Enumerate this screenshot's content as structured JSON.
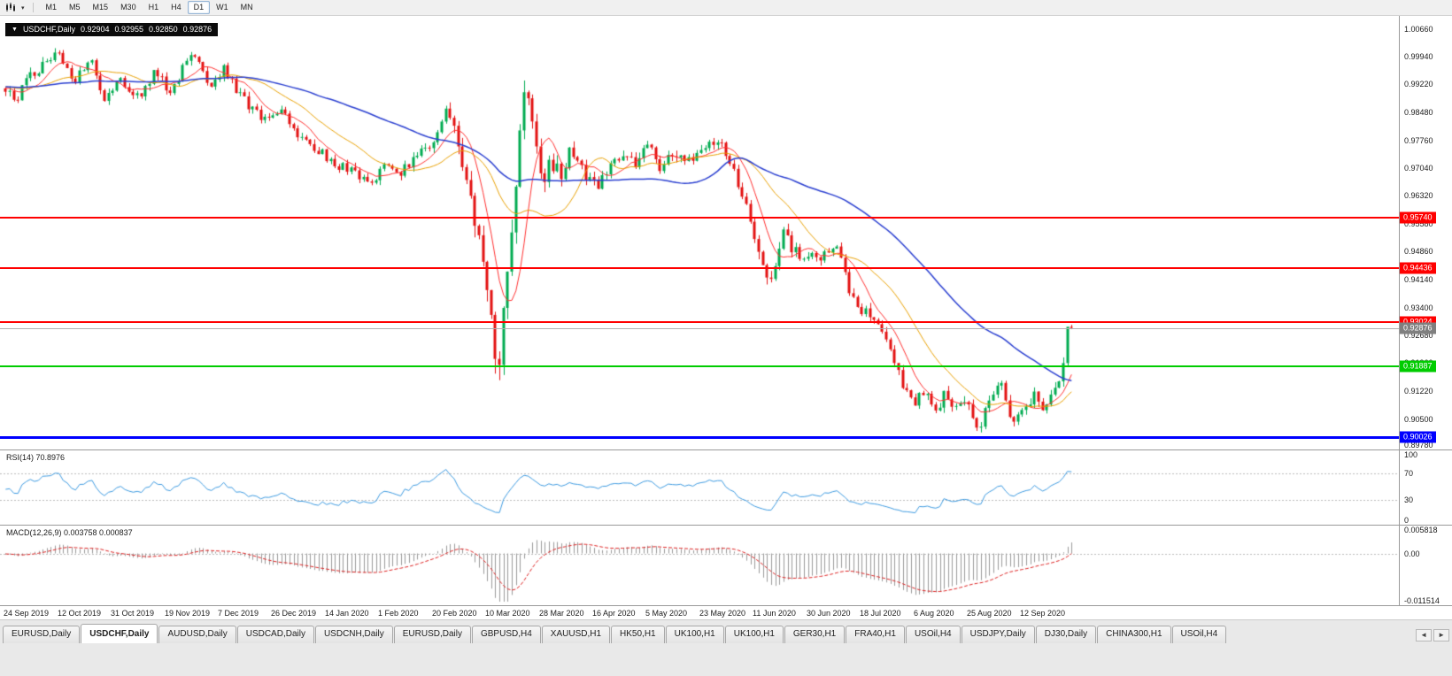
{
  "toolbar": {
    "timeframes": [
      "M1",
      "M5",
      "M15",
      "M30",
      "H1",
      "H4",
      "D1",
      "W1",
      "MN"
    ],
    "active_timeframe": "D1",
    "chart_menu_caret": "▾"
  },
  "chart": {
    "title": "USDCHF,Daily",
    "collapse_icon": "▼",
    "ohlc": {
      "open": "0.92904",
      "high": "0.92955",
      "low": "0.92850",
      "close": "0.92876"
    },
    "price_axis": {
      "max": 1.01,
      "min": 0.8971,
      "labels": [
        "1.00660",
        "0.99940",
        "0.99220",
        "0.98480",
        "0.97760",
        "0.97040",
        "0.96320",
        "0.95580",
        "0.94860",
        "0.94140",
        "0.93400",
        "0.92680",
        "0.91960",
        "0.91220",
        "0.90500",
        "0.89780"
      ]
    },
    "sr_lines": [
      {
        "name": "resistance-line-1",
        "label": "0.95740",
        "price": 0.9574,
        "color": "#ff0000",
        "thickness": 2
      },
      {
        "name": "resistance-line-2",
        "label": "0.94436",
        "price": 0.94436,
        "color": "#ff0000",
        "thickness": 2
      },
      {
        "name": "resistance-line-3",
        "label": "0.93024",
        "price": 0.93024,
        "color": "#ff0000",
        "thickness": 2
      },
      {
        "name": "support-line-green",
        "label": "0.91887",
        "price": 0.91887,
        "color": "#00cc00",
        "thickness": 2
      },
      {
        "name": "support-line-blue",
        "label": "0.90026",
        "price": 0.90026,
        "color": "#0000ff",
        "thickness": 3
      }
    ],
    "current_price": {
      "label": "0.92876",
      "value": 0.92876,
      "line_color": "#b0b0b0",
      "badge_color": "#7f7f7f"
    }
  },
  "rsi": {
    "label": "RSI(14) 70.8976",
    "value": 70.8976,
    "period": 14,
    "axis_labels": [
      "100",
      "70",
      "30",
      "0"
    ],
    "levels": [
      70,
      30
    ],
    "color": "#3d9ae0"
  },
  "macd": {
    "label": "MACD(12,26,9) 0.003758 0.000837",
    "macd_value": 0.003758,
    "signal_value": 0.000837,
    "axis_labels": [
      "0.005818",
      "0.00",
      "-0.011514"
    ],
    "max": 0.005818,
    "min": -0.011514,
    "histogram_color": "#9a9a9a",
    "signal_color": "#dd2222"
  },
  "date_axis": [
    "24 Sep 2019",
    "12 Oct 2019",
    "31 Oct 2019",
    "19 Nov 2019",
    "7 Dec 2019",
    "26 Dec 2019",
    "14 Jan 2020",
    "1 Feb 2020",
    "20 Feb 2020",
    "10 Mar 2020",
    "28 Mar 2020",
    "16 Apr 2020",
    "5 May 2020",
    "23 May 2020",
    "11 Jun 2020",
    "30 Jun 2020",
    "18 Jul 2020",
    "6 Aug 2020",
    "25 Aug 2020",
    "12 Sep 2020"
  ],
  "tabs": [
    {
      "label": "EURUSD,Daily",
      "active": false
    },
    {
      "label": "USDCHF,Daily",
      "active": true
    },
    {
      "label": "AUDUSD,Daily",
      "active": false
    },
    {
      "label": "USDCAD,Daily",
      "active": false
    },
    {
      "label": "USDCNH,Daily",
      "active": false
    },
    {
      "label": "EURUSD,Daily",
      "active": false
    },
    {
      "label": "GBPUSD,H4",
      "active": false
    },
    {
      "label": "XAUUSD,H1",
      "active": false
    },
    {
      "label": "HK50,H1",
      "active": false
    },
    {
      "label": "UK100,H1",
      "active": false
    },
    {
      "label": "UK100,H1",
      "active": false
    },
    {
      "label": "GER30,H1",
      "active": false
    },
    {
      "label": "FRA40,H1",
      "active": false
    },
    {
      "label": "USOil,H4",
      "active": false
    },
    {
      "label": "USDJPY,Daily",
      "active": false
    },
    {
      "label": "DJ30,Daily",
      "active": false
    },
    {
      "label": "CHINA300,H1",
      "active": false
    },
    {
      "label": "USOil,H4",
      "active": false
    }
  ],
  "tab_scroll": {
    "left": "◄",
    "right": "►"
  },
  "chart_data": {
    "type": "candlestick",
    "symbol": "USDCHF",
    "timeframe": "Daily",
    "candles_count": 260,
    "data_right_fraction": 0.77,
    "colors": {
      "bull": "#00ab50",
      "bear": "#e31212"
    },
    "ma": [
      {
        "name": "ma-fast-red",
        "period": 8,
        "color": "#ff3030",
        "width": 1
      },
      {
        "name": "ma-mid-orange",
        "period": 21,
        "color": "#e8a000",
        "width": 1
      },
      {
        "name": "ma-slow-blue",
        "period": 55,
        "color": "#2a3fd0",
        "width": 1.5
      }
    ],
    "last_candle": {
      "open": 0.92904,
      "high": 0.92955,
      "low": 0.9285,
      "close": 0.92876
    },
    "price_path": [
      [
        0.0,
        0.9915
      ],
      [
        0.008,
        0.9868
      ],
      [
        0.022,
        0.9945
      ],
      [
        0.05,
        1.0
      ],
      [
        0.063,
        0.9925
      ],
      [
        0.08,
        0.9985
      ],
      [
        0.094,
        0.9875
      ],
      [
        0.108,
        0.994
      ],
      [
        0.124,
        0.989
      ],
      [
        0.14,
        0.995
      ],
      [
        0.155,
        0.9905
      ],
      [
        0.175,
        1.0005
      ],
      [
        0.192,
        0.9925
      ],
      [
        0.205,
        0.996
      ],
      [
        0.225,
        0.9875
      ],
      [
        0.24,
        0.983
      ],
      [
        0.258,
        0.9855
      ],
      [
        0.275,
        0.979
      ],
      [
        0.292,
        0.975
      ],
      [
        0.31,
        0.9715
      ],
      [
        0.328,
        0.969
      ],
      [
        0.342,
        0.966
      ],
      [
        0.356,
        0.972
      ],
      [
        0.37,
        0.969
      ],
      [
        0.388,
        0.9745
      ],
      [
        0.402,
        0.978
      ],
      [
        0.413,
        0.984
      ],
      [
        0.424,
        0.977
      ],
      [
        0.435,
        0.964
      ],
      [
        0.446,
        0.947
      ],
      [
        0.456,
        0.928
      ],
      [
        0.462,
        0.9185
      ],
      [
        0.468,
        0.932
      ],
      [
        0.476,
        0.958
      ],
      [
        0.486,
        0.9895
      ],
      [
        0.494,
        0.983
      ],
      [
        0.503,
        0.9645
      ],
      [
        0.512,
        0.973
      ],
      [
        0.52,
        0.969
      ],
      [
        0.53,
        0.976
      ],
      [
        0.542,
        0.97
      ],
      [
        0.554,
        0.9655
      ],
      [
        0.566,
        0.97
      ],
      [
        0.578,
        0.9745
      ],
      [
        0.59,
        0.972
      ],
      [
        0.602,
        0.976
      ],
      [
        0.614,
        0.9705
      ],
      [
        0.626,
        0.9745
      ],
      [
        0.64,
        0.972
      ],
      [
        0.652,
        0.975
      ],
      [
        0.665,
        0.9775
      ],
      [
        0.678,
        0.974
      ],
      [
        0.69,
        0.965
      ],
      [
        0.7,
        0.956
      ],
      [
        0.712,
        0.944
      ],
      [
        0.72,
        0.9425
      ],
      [
        0.73,
        0.953
      ],
      [
        0.742,
        0.948
      ],
      [
        0.755,
        0.9468
      ],
      [
        0.768,
        0.9475
      ],
      [
        0.78,
        0.949
      ],
      [
        0.79,
        0.94
      ],
      [
        0.802,
        0.934
      ],
      [
        0.815,
        0.931
      ],
      [
        0.822,
        0.9295
      ],
      [
        0.832,
        0.9215
      ],
      [
        0.842,
        0.9125
      ],
      [
        0.852,
        0.9085
      ],
      [
        0.862,
        0.912
      ],
      [
        0.873,
        0.9075
      ],
      [
        0.882,
        0.913
      ],
      [
        0.89,
        0.906
      ],
      [
        0.9,
        0.911
      ],
      [
        0.91,
        0.902
      ],
      [
        0.918,
        0.906
      ],
      [
        0.925,
        0.91
      ],
      [
        0.933,
        0.9155
      ],
      [
        0.941,
        0.906
      ],
      [
        0.95,
        0.9045
      ],
      [
        0.958,
        0.909
      ],
      [
        0.966,
        0.9125
      ],
      [
        0.974,
        0.908
      ],
      [
        0.982,
        0.9105
      ],
      [
        0.988,
        0.915
      ],
      [
        0.994,
        0.9235
      ],
      [
        1.0,
        0.929
      ]
    ],
    "volatility": [
      [
        0.0,
        0.0016
      ],
      [
        0.4,
        0.0016
      ],
      [
        0.43,
        0.0035
      ],
      [
        0.455,
        0.005
      ],
      [
        0.47,
        0.005
      ],
      [
        0.5,
        0.0035
      ],
      [
        0.55,
        0.0022
      ],
      [
        0.68,
        0.0017
      ],
      [
        0.705,
        0.0026
      ],
      [
        0.75,
        0.0017
      ],
      [
        0.82,
        0.0018
      ],
      [
        0.9,
        0.002
      ],
      [
        1.0,
        0.002
      ]
    ]
  }
}
